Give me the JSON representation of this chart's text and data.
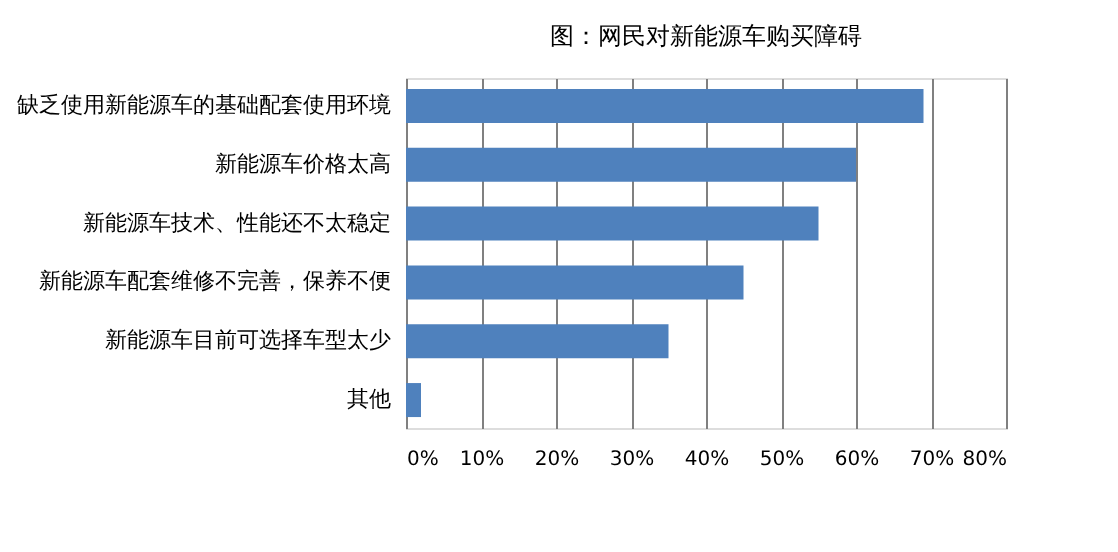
{
  "chart_data": {
    "type": "bar",
    "orientation": "horizontal",
    "title": "图：网民对新能源车购买障碍",
    "categories": [
      "缺乏使用新能源车的基础配套使用环境",
      "新能源车价格太高",
      "新能源车技术、性能还不太稳定",
      "新能源车配套维修不完善，保养不便",
      "新能源车目前可选择车型太少",
      "其他"
    ],
    "values": [
      69,
      60,
      55,
      45,
      35,
      2
    ],
    "color": "#4f81bd",
    "xlim": [
      0,
      80
    ],
    "xticks": [
      {
        "value": 0,
        "label": "0%"
      },
      {
        "value": 10,
        "label": "10%"
      },
      {
        "value": 20,
        "label": "20%"
      },
      {
        "value": 30,
        "label": "30%"
      },
      {
        "value": 40,
        "label": "40%"
      },
      {
        "value": 50,
        "label": "50%"
      },
      {
        "value": 60,
        "label": "60%"
      },
      {
        "value": 70,
        "label": "70%"
      },
      {
        "value": 80,
        "label": "80%"
      }
    ],
    "grid": "x"
  }
}
